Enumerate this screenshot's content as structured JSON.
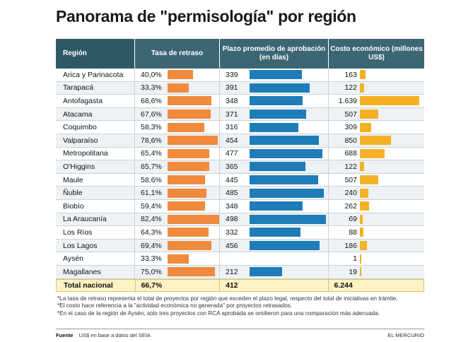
{
  "title": "Panorama de \"permisología\" por región",
  "headers": {
    "region": "Región",
    "tasa": "Tasa de retraso",
    "plazo": "Plazo promedio de aprobación (en días)",
    "costo": "Costo económico (millones US$)"
  },
  "chart_data": {
    "type": "table",
    "columns": [
      "Región",
      "Tasa de retraso",
      "Plazo promedio de aprobación (en días)",
      "Costo económico (millones US$)"
    ],
    "rows": [
      {
        "region": "Arica y Parinacota",
        "tasa": "40,0%",
        "tasa_val": 40.0,
        "plazo": "339",
        "plazo_val": 339,
        "costo": "163",
        "costo_val": 163
      },
      {
        "region": "Tarapacá",
        "tasa": "33,3%",
        "tasa_val": 33.3,
        "plazo": "391",
        "plazo_val": 391,
        "costo": "122",
        "costo_val": 122
      },
      {
        "region": "Antofagasta",
        "tasa": "68,6%",
        "tasa_val": 68.6,
        "plazo": "348",
        "plazo_val": 348,
        "costo": "1.639",
        "costo_val": 1639
      },
      {
        "region": "Atacama",
        "tasa": "67,6%",
        "tasa_val": 67.6,
        "plazo": "371",
        "plazo_val": 371,
        "costo": "507",
        "costo_val": 507
      },
      {
        "region": "Coquimbo",
        "tasa": "58,3%",
        "tasa_val": 58.3,
        "plazo": "316",
        "plazo_val": 316,
        "costo": "309",
        "costo_val": 309
      },
      {
        "region": "Valparaíso",
        "tasa": "78,6%",
        "tasa_val": 78.6,
        "plazo": "454",
        "plazo_val": 454,
        "costo": "850",
        "costo_val": 850
      },
      {
        "region": "Metropolitana",
        "tasa": "65,4%",
        "tasa_val": 65.4,
        "plazo": "477",
        "plazo_val": 477,
        "costo": "688",
        "costo_val": 688
      },
      {
        "region": "O'Higgins",
        "tasa": "65,7%",
        "tasa_val": 65.7,
        "plazo": "365",
        "plazo_val": 365,
        "costo": "122",
        "costo_val": 122
      },
      {
        "region": "Maule",
        "tasa": "58,6%",
        "tasa_val": 58.6,
        "plazo": "445",
        "plazo_val": 445,
        "costo": "507",
        "costo_val": 507
      },
      {
        "region": "Ñuble",
        "tasa": "61,1%",
        "tasa_val": 61.1,
        "plazo": "485",
        "plazo_val": 485,
        "costo": "240",
        "costo_val": 240
      },
      {
        "region": "Biobío",
        "tasa": "59,4%",
        "tasa_val": 59.4,
        "plazo": "348",
        "plazo_val": 348,
        "costo": "262",
        "costo_val": 262
      },
      {
        "region": "La Araucanía",
        "tasa": "82,4%",
        "tasa_val": 82.4,
        "plazo": "498",
        "plazo_val": 498,
        "costo": "69",
        "costo_val": 69
      },
      {
        "region": "Los Ríos",
        "tasa": "64,3%",
        "tasa_val": 64.3,
        "plazo": "332",
        "plazo_val": 332,
        "costo": "88",
        "costo_val": 88
      },
      {
        "region": "Los Lagos",
        "tasa": "69,4%",
        "tasa_val": 69.4,
        "plazo": "456",
        "plazo_val": 456,
        "costo": "186",
        "costo_val": 186
      },
      {
        "region": "Aysén",
        "tasa": "33,3%",
        "tasa_val": 33.3,
        "plazo": "",
        "plazo_val": 0,
        "costo": "1",
        "costo_val": 1
      },
      {
        "region": "Magallanes",
        "tasa": "75,0%",
        "tasa_val": 75.0,
        "plazo": "212",
        "plazo_val": 212,
        "costo": "19",
        "costo_val": 19
      }
    ],
    "total": {
      "region": "Total nacional",
      "tasa": "66,7%",
      "plazo": "412",
      "costo": "6.244"
    },
    "colors": {
      "tasa": "#f08a3c",
      "plazo": "#1e7db8",
      "costo": "#f5b126",
      "header": "#3d6675"
    }
  },
  "notes": [
    "*La tasa de retraso representa el total de proyectos por región que exceden el plazo legal, respecto del total de iniciativas en trámite.",
    "*El costo hace referencia a la \"actividad económica no generada\" por proyectos retrasados.",
    "*En el caso de la región de Aysén, solo tres proyectos con RCA aprobada se omitieron para una comparación más adecuada."
  ],
  "footer": {
    "fuente_label": "Fuente",
    "fuente_text": "US$ en base a datos del SEIA",
    "brand": "EL MERCURIO"
  }
}
